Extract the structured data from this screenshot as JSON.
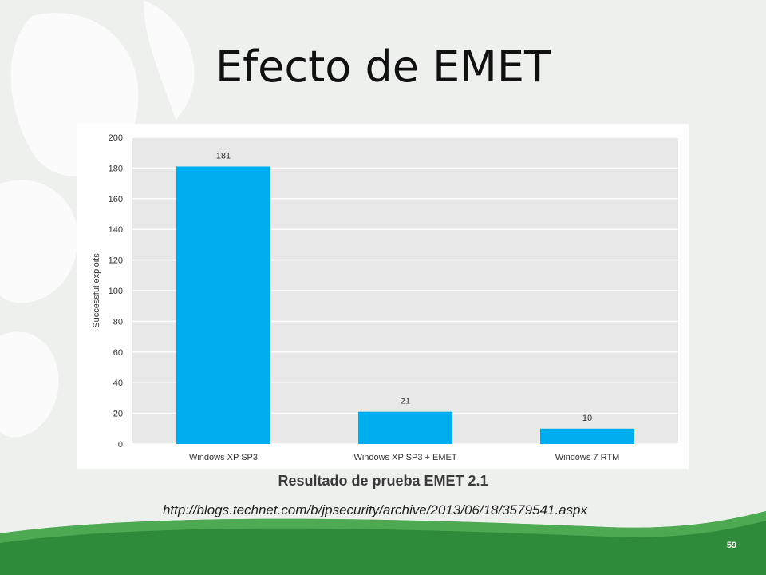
{
  "slide": {
    "title": "Efecto de EMET",
    "caption": "Resultado de prueba EMET 2.1",
    "source_url": "http://blogs.technet.com/b/jpsecurity/archive/2013/06/18/3579541.aspx",
    "slide_number": "59"
  },
  "colors": {
    "bar": "#00adef",
    "plot_background": "#e8e8e8",
    "footer_green": "#2e8b3a"
  },
  "chart_data": {
    "type": "bar",
    "categories": [
      "Windows XP SP3",
      "Windows XP SP3 + EMET",
      "Windows 7 RTM"
    ],
    "values": [
      181,
      21,
      10
    ],
    "data_labels": [
      "181",
      "21",
      "10"
    ],
    "title": "",
    "xlabel": "",
    "ylabel": "Successful exploits",
    "ylim": [
      0,
      200
    ],
    "yticks": [
      0,
      20,
      40,
      60,
      80,
      100,
      120,
      140,
      160,
      180,
      200
    ],
    "grid": true,
    "legend": "none"
  }
}
